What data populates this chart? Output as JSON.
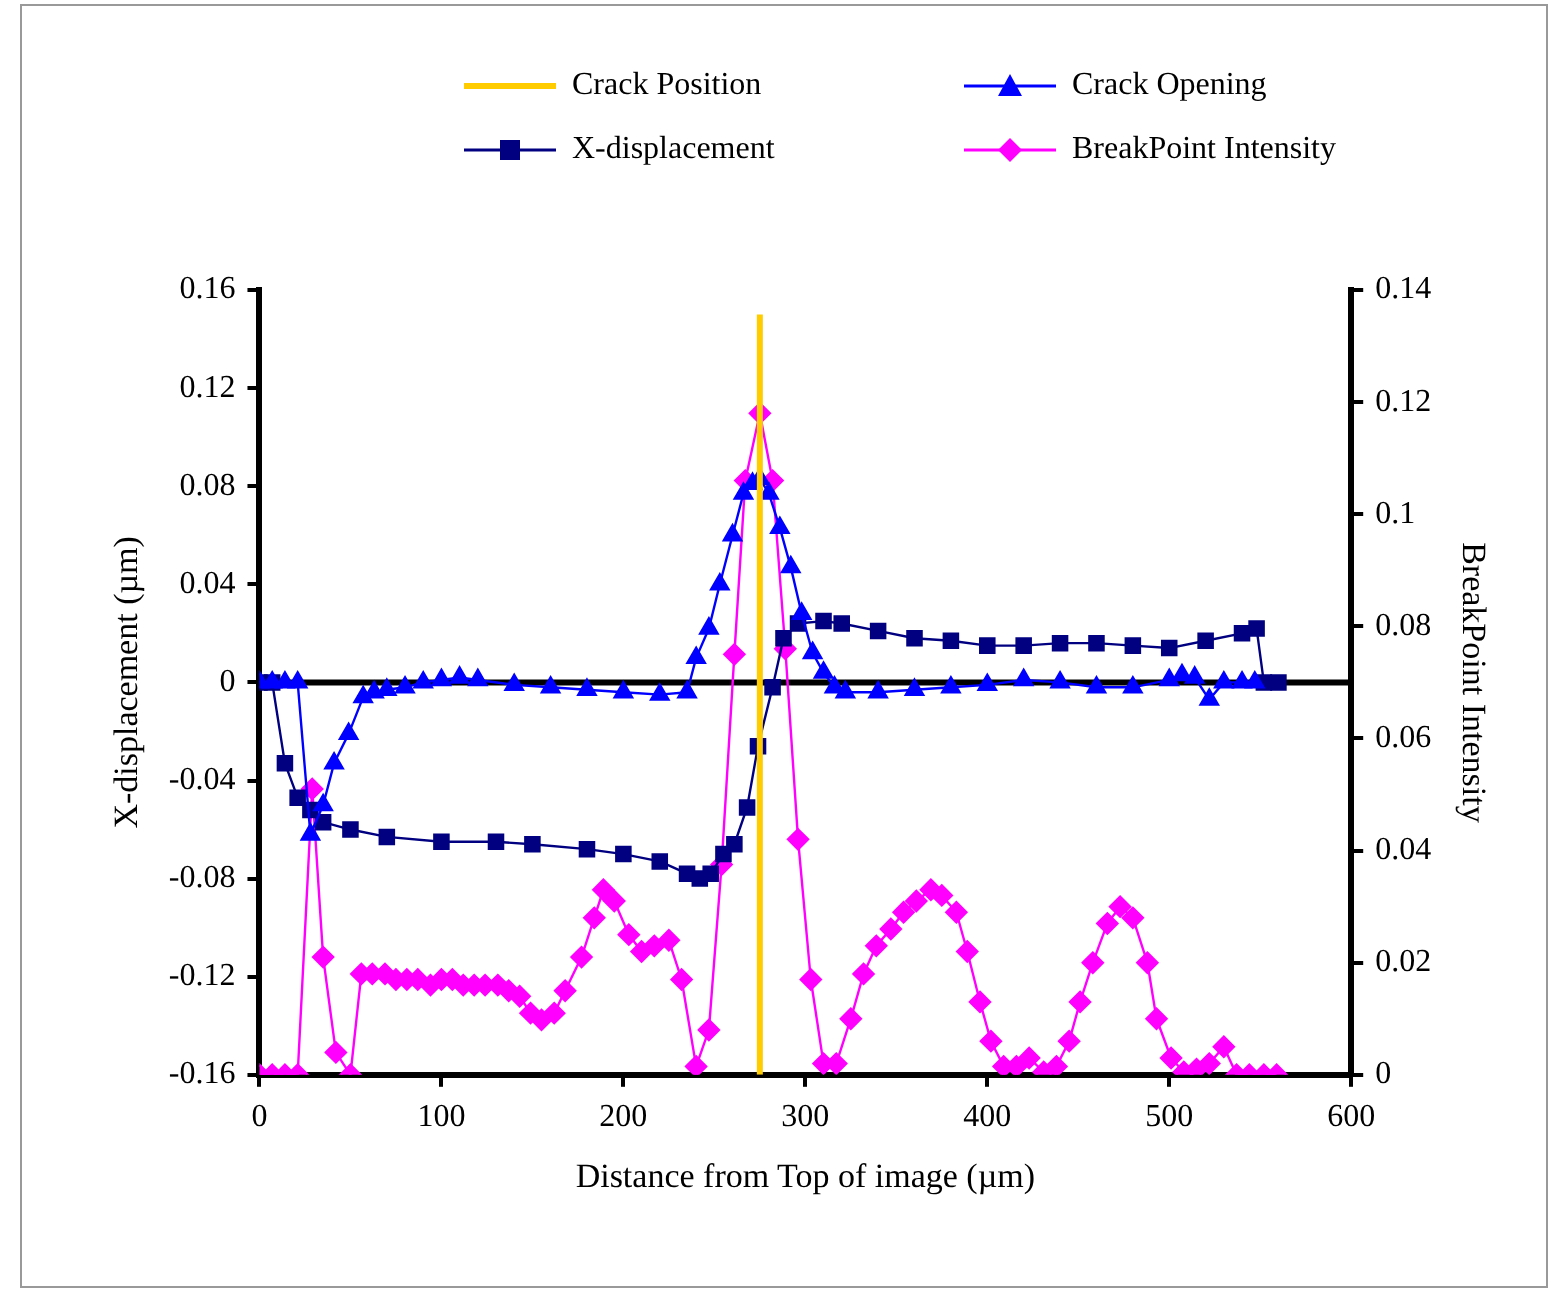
{
  "chart_data": {
    "type": "line",
    "xlabel": "Distance from Top of image (µm)",
    "ylabel": "X-displacement (µm)",
    "y2label": "BreakPoint Intensity",
    "xlim": [
      0,
      600
    ],
    "xticks": [
      0,
      100,
      200,
      300,
      400,
      500,
      600
    ],
    "ylim": [
      -0.16,
      0.16
    ],
    "yticks": [
      -0.16,
      -0.12,
      -0.08,
      -0.04,
      0,
      0.04,
      0.08,
      0.12,
      0.16
    ],
    "y2lim": [
      0,
      0.14
    ],
    "y2ticks": [
      0,
      0.02,
      0.04,
      0.06,
      0.08,
      0.1,
      0.12,
      0.14
    ],
    "grid": false,
    "legend": "top",
    "ref_lines": [
      {
        "axis": "y",
        "value": 0,
        "color": "#000000"
      }
    ],
    "series": [
      {
        "name": "Crack Position",
        "color": "#ffcc00",
        "marker": "none",
        "x": [
          275,
          275
        ],
        "values": [
          -0.16,
          0.15
        ]
      },
      {
        "name": "Crack Opening",
        "color": "#0000ff",
        "marker": "triangle",
        "x": [
          0,
          7,
          14,
          21,
          28,
          35,
          41,
          49,
          57,
          63,
          70,
          80,
          90,
          100,
          110,
          120,
          140,
          160,
          180,
          200,
          220,
          235,
          240,
          247,
          253,
          260,
          266,
          271,
          275,
          280,
          286,
          292,
          298,
          304,
          310,
          316,
          322,
          340,
          360,
          380,
          400,
          420,
          440,
          460,
          480,
          500,
          507,
          514,
          522,
          530,
          540,
          547
        ],
        "values": [
          0,
          0,
          0,
          0,
          -0.062,
          -0.05,
          -0.033,
          -0.021,
          -0.006,
          -0.004,
          -0.003,
          -0.002,
          0,
          0.001,
          0.002,
          0.001,
          -0.001,
          -0.002,
          -0.003,
          -0.004,
          -0.005,
          -0.004,
          0.01,
          0.022,
          0.04,
          0.06,
          0.077,
          0.081,
          0.083,
          0.077,
          0.063,
          0.047,
          0.028,
          0.012,
          0.004,
          -0.002,
          -0.004,
          -0.004,
          -0.003,
          -0.002,
          -0.001,
          0.001,
          0,
          -0.002,
          -0.002,
          0.001,
          0.003,
          0.002,
          -0.007,
          0,
          0,
          0
        ]
      },
      {
        "name": "X-displacement",
        "color": "#000080",
        "marker": "square",
        "x": [
          0,
          7,
          14,
          21,
          28,
          35,
          50,
          70,
          100,
          130,
          150,
          180,
          200,
          220,
          235,
          242,
          248,
          255,
          261,
          268,
          274,
          282,
          288,
          296,
          310,
          320,
          340,
          360,
          380,
          400,
          420,
          440,
          460,
          480,
          500,
          520,
          540,
          548,
          552,
          560
        ],
        "values": [
          0,
          0,
          -0.033,
          -0.047,
          -0.052,
          -0.057,
          -0.06,
          -0.063,
          -0.065,
          -0.065,
          -0.066,
          -0.068,
          -0.07,
          -0.073,
          -0.078,
          -0.08,
          -0.078,
          -0.07,
          -0.066,
          -0.051,
          -0.026,
          -0.002,
          0.018,
          0.024,
          0.025,
          0.024,
          0.021,
          0.018,
          0.017,
          0.015,
          0.015,
          0.016,
          0.016,
          0.015,
          0.014,
          0.017,
          0.02,
          0.022,
          0,
          0
        ]
      },
      {
        "name": "BreakPoint Intensity",
        "color": "#ff00ff",
        "marker": "diamond",
        "axis": "y2",
        "x": [
          0,
          7,
          14,
          21,
          29,
          35,
          42,
          50,
          56,
          62,
          69,
          75,
          81,
          87,
          94,
          100,
          106,
          112,
          118,
          124,
          131,
          137,
          143,
          149,
          155,
          162,
          168,
          177,
          184,
          189,
          195,
          203,
          210,
          217,
          225,
          232,
          240,
          247,
          254,
          261,
          267,
          275,
          282,
          289,
          296,
          303,
          310,
          317,
          325,
          332,
          339,
          347,
          354,
          361,
          369,
          375,
          383,
          389,
          396,
          402,
          409,
          416,
          423,
          431,
          438,
          445,
          451,
          458,
          466,
          473,
          480,
          488,
          493,
          501,
          508,
          515,
          522,
          530,
          537,
          544,
          552,
          559
        ],
        "values": [
          0,
          0,
          0,
          0,
          0.051,
          0.021,
          0.004,
          0,
          0.018,
          0.018,
          0.018,
          0.017,
          0.017,
          0.017,
          0.016,
          0.017,
          0.017,
          0.016,
          0.016,
          0.016,
          0.016,
          0.015,
          0.014,
          0.011,
          0.0098,
          0.011,
          0.015,
          0.021,
          0.028,
          0.033,
          0.031,
          0.025,
          0.022,
          0.023,
          0.024,
          0.017,
          0.0015,
          0.008,
          0.0375,
          0.075,
          0.106,
          0.118,
          0.106,
          0.076,
          0.042,
          0.017,
          0.002,
          0.002,
          0.01,
          0.018,
          0.023,
          0.026,
          0.029,
          0.031,
          0.033,
          0.032,
          0.029,
          0.022,
          0.013,
          0.006,
          0.0015,
          0.0015,
          0.003,
          0.0005,
          0.0015,
          0.006,
          0.013,
          0.02,
          0.027,
          0.03,
          0.028,
          0.02,
          0.01,
          0.003,
          0.0005,
          0.001,
          0.002,
          0.005,
          0,
          0,
          0,
          0
        ]
      }
    ]
  }
}
